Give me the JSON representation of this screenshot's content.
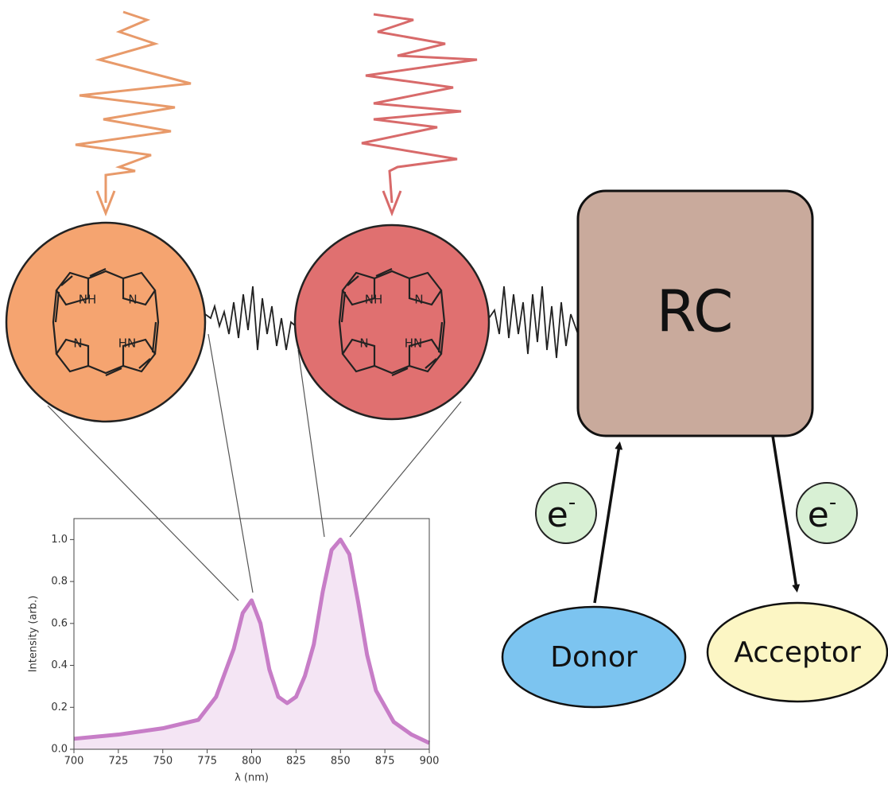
{
  "diagram": {
    "pigments": [
      {
        "atoms": [
          "NH",
          "N",
          "N",
          "HN"
        ]
      },
      {
        "atoms": [
          "NH",
          "N",
          "N",
          "HN"
        ]
      }
    ],
    "rc_label": "RC",
    "electrons": [
      {
        "base": "e",
        "sup": "-"
      },
      {
        "base": "e",
        "sup": "-"
      }
    ],
    "donor": "Donor",
    "acceptor": "Acceptor"
  },
  "chart_data": {
    "type": "area",
    "x_label": "λ (nm)",
    "y_label": "Intensity (arb.)",
    "x": [
      700,
      725,
      750,
      770,
      780,
      790,
      795,
      800,
      805,
      810,
      815,
      820,
      825,
      830,
      835,
      840,
      845,
      850,
      855,
      860,
      865,
      870,
      880,
      890,
      900
    ],
    "values": [
      0.05,
      0.07,
      0.1,
      0.14,
      0.25,
      0.48,
      0.65,
      0.71,
      0.6,
      0.38,
      0.25,
      0.22,
      0.25,
      0.35,
      0.5,
      0.75,
      0.95,
      1.0,
      0.93,
      0.7,
      0.45,
      0.28,
      0.13,
      0.07,
      0.03
    ],
    "color": "#c77dc7",
    "xlim": [
      700,
      900
    ],
    "ylim": [
      0,
      1.1
    ],
    "xticks": [
      700,
      725,
      750,
      775,
      800,
      825,
      850,
      875,
      900
    ],
    "yticks": [
      {
        "value": 0,
        "label": "0.0"
      },
      0.2,
      0.4,
      0.6,
      0.8,
      {
        "value": 1,
        "label": "1.0"
      }
    ]
  }
}
